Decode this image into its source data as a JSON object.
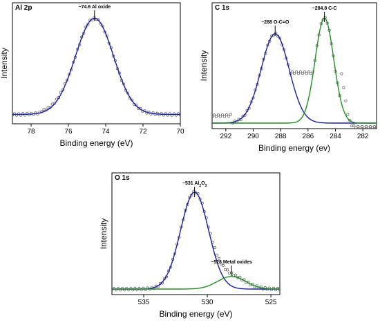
{
  "chart_data": [
    {
      "type": "line",
      "panel_label": "Al 2p",
      "xlabel": "Binding energy (eV)",
      "ylabel": "Intensity",
      "x_reversed": true,
      "xlim": [
        79,
        70
      ],
      "ylim": [
        0,
        1.08
      ],
      "xticks": [
        78,
        76,
        74,
        72,
        70
      ],
      "grid": false,
      "colors": {
        "fit": "#1a1aa8",
        "data": "#555555"
      },
      "annotations": [
        {
          "text": "~74.6 Al oxide",
          "x": 74.6
        }
      ],
      "peaks": [
        {
          "component": "Al oxide",
          "center": 74.6,
          "fwhm": 2.4,
          "height": 1.0,
          "color": "#1a1aa8"
        }
      ],
      "baseline": 0.04
    },
    {
      "type": "line",
      "panel_label": "C 1s",
      "xlabel": "Binding energy (ev)",
      "ylabel": "Intensity",
      "x_reversed": true,
      "xlim": [
        293,
        281
      ],
      "ylim": [
        0,
        1.08
      ],
      "xticks": [
        292,
        290,
        288,
        286,
        284,
        282
      ],
      "grid": false,
      "colors": {
        "fit1": "#1a1aa8",
        "fit2": "#1d8f1d",
        "data": "#555555"
      },
      "annotations": [
        {
          "text": "~288 O-C=O",
          "x": 288.4
        },
        {
          "text": "~284.8 C-C",
          "x": 284.8
        }
      ],
      "peaks": [
        {
          "component": "O-C=O",
          "center": 288.4,
          "fwhm": 2.4,
          "height": 0.85,
          "color": "#1a1aa8"
        },
        {
          "component": "C-C",
          "center": 284.8,
          "fwhm": 1.6,
          "height": 1.0,
          "color": "#1d8f1d"
        }
      ],
      "baseline": 0.0
    },
    {
      "type": "line",
      "panel_label": "O 1s",
      "xlabel": "Binding energy (eV)",
      "ylabel": "Intensity",
      "x_reversed": true,
      "xlim": [
        537.5,
        524.3
      ],
      "ylim": [
        0,
        1.08
      ],
      "xticks": [
        535,
        530,
        525
      ],
      "grid": false,
      "colors": {
        "fit1": "#1a1aa8",
        "fit2": "#1d8f1d",
        "data": "#555555"
      },
      "annotations": [
        {
          "text": "~531 Al",
          "sub": "2",
          "tail": "O",
          "sub2": "3",
          "x": 531.0
        },
        {
          "text": "~528 Metal oxides",
          "x": 528.1
        }
      ],
      "peaks": [
        {
          "component": "Al2O3",
          "center": 531.0,
          "fwhm": 2.6,
          "height": 1.0,
          "color": "#1a1aa8"
        },
        {
          "component": "Metal oxides",
          "center": 528.1,
          "fwhm": 2.6,
          "height": 0.13,
          "color": "#1d8f1d"
        }
      ],
      "baseline": 0.0
    }
  ]
}
